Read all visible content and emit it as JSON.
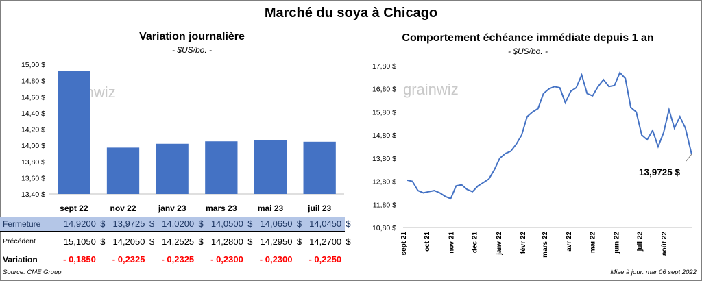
{
  "title": "Marché du soya à Chicago",
  "left_panel": {
    "title": "Variation  journalière",
    "subtitle": "- $US/bo. -",
    "watermark": "grainwiz"
  },
  "right_panel": {
    "title": "Comportement  échéance immédiate depuis 1 an",
    "subtitle": "- $US/bo. -",
    "watermark": "grainwiz",
    "last_value_label": "13,9725 $"
  },
  "table": {
    "rows": [
      {
        "label": "Fermeture",
        "values": [
          "14,9200",
          "13,9725",
          "14,0200",
          "14,0500",
          "14,0650",
          "14,0450"
        ],
        "unit": "$"
      },
      {
        "label": "Précédent",
        "values": [
          "15,1050",
          "14,2050",
          "14,2525",
          "14,2800",
          "14,2950",
          "14,2700"
        ],
        "unit": "$"
      },
      {
        "label": "Variation",
        "values": [
          "- 0,1850",
          "- 0,2325",
          "- 0,2325",
          "- 0,2300",
          "- 0,2300",
          "- 0,2250"
        ]
      }
    ]
  },
  "footer": {
    "source": "Source: CME Group",
    "updated": "Mise à jour: mar 06 sept 2022"
  },
  "colors": {
    "bar": "#4472c4",
    "line": "#4472c4",
    "fermeture_bg": "#b4c6e7",
    "variation_text": "#ff0000"
  },
  "chart_data": [
    {
      "type": "bar",
      "title": "Variation  journalière",
      "subtitle": "- $US/bo. -",
      "categories": [
        "sept 22",
        "nov 22",
        "janv 23",
        "mars 23",
        "mai 23",
        "juil 23"
      ],
      "values": [
        14.92,
        13.9725,
        14.02,
        14.05,
        14.065,
        14.045
      ],
      "ylim": [
        13.4,
        15.0
      ],
      "yticks": [
        13.4,
        13.6,
        13.8,
        14.0,
        14.2,
        14.4,
        14.6,
        14.8,
        15.0
      ],
      "ytick_labels": [
        "13,40 $",
        "13,60 $",
        "13,80 $",
        "14,00 $",
        "14,20 $",
        "14,40 $",
        "14,60 $",
        "14,80 $",
        "15,00 $"
      ],
      "grid": false,
      "legend": "none"
    },
    {
      "type": "line",
      "title": "Comportement  échéance immédiate depuis 1 an",
      "subtitle": "- $US/bo. -",
      "xticks": [
        "sept 21",
        "oct 21",
        "nov 21",
        "déc 21",
        "janv 22",
        "févr 22",
        "mars 22",
        "avr 22",
        "mai 22",
        "juin 22",
        "juil 22",
        "août 22"
      ],
      "x": [
        "2021-09-06",
        "2021-09-13",
        "2021-09-20",
        "2021-09-27",
        "2021-10-04",
        "2021-10-11",
        "2021-10-18",
        "2021-10-25",
        "2021-11-01",
        "2021-11-08",
        "2021-11-15",
        "2021-11-22",
        "2021-11-29",
        "2021-12-06",
        "2021-12-13",
        "2021-12-20",
        "2021-12-27",
        "2022-01-03",
        "2022-01-10",
        "2022-01-17",
        "2022-01-24",
        "2022-01-31",
        "2022-02-07",
        "2022-02-14",
        "2022-02-21",
        "2022-02-28",
        "2022-03-07",
        "2022-03-14",
        "2022-03-21",
        "2022-03-28",
        "2022-04-04",
        "2022-04-11",
        "2022-04-18",
        "2022-04-25",
        "2022-05-02",
        "2022-05-09",
        "2022-05-16",
        "2022-05-23",
        "2022-05-30",
        "2022-06-06",
        "2022-06-13",
        "2022-06-20",
        "2022-06-27",
        "2022-07-04",
        "2022-07-11",
        "2022-07-18",
        "2022-07-25",
        "2022-08-01",
        "2022-08-08",
        "2022-08-15",
        "2022-08-22",
        "2022-08-29",
        "2022-09-06"
      ],
      "y": [
        12.85,
        12.8,
        12.4,
        12.3,
        12.35,
        12.4,
        12.3,
        12.15,
        12.05,
        12.6,
        12.65,
        12.45,
        12.35,
        12.6,
        12.75,
        12.9,
        13.3,
        13.8,
        14.0,
        14.1,
        14.4,
        14.8,
        15.6,
        15.8,
        15.95,
        16.6,
        16.8,
        16.9,
        16.85,
        16.2,
        16.7,
        16.85,
        17.4,
        16.6,
        16.5,
        16.9,
        17.2,
        16.9,
        16.95,
        17.5,
        17.25,
        16.0,
        15.8,
        14.8,
        14.6,
        15.0,
        14.3,
        14.9,
        15.9,
        15.1,
        15.6,
        15.1,
        13.9725
      ],
      "ylim": [
        10.8,
        17.8
      ],
      "yticks": [
        10.8,
        11.8,
        12.8,
        13.8,
        14.8,
        15.8,
        16.8,
        17.8
      ],
      "ytick_labels": [
        "10,80 $",
        "11,80 $",
        "12,80 $",
        "13,80 $",
        "14,80 $",
        "15,80 $",
        "16,80 $",
        "17,80 $"
      ],
      "annotation": "13,9725 $",
      "grid": false,
      "legend": "none"
    }
  ]
}
